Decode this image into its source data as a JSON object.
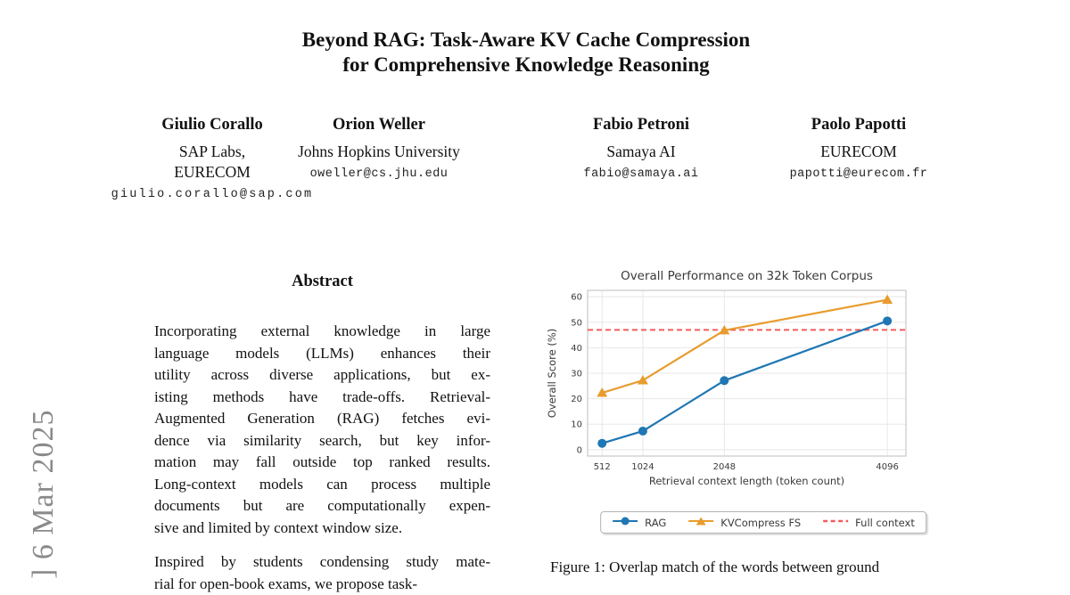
{
  "arxiv_stamp": {
    "text": "] 6 Mar 2025",
    "color": "#8a8a8a"
  },
  "title": {
    "line1": "Beyond RAG: Task-Aware KV Cache Compression",
    "line2": "for Comprehensive Knowledge Reasoning"
  },
  "authors": [
    {
      "name": "Giulio Corallo",
      "affil1": "SAP Labs,",
      "affil2": "EURECOM",
      "email": "giulio.corallo@sap.com"
    },
    {
      "name": "Orion Weller",
      "affil1": "Johns Hopkins University",
      "affil2": "",
      "email": "oweller@cs.jhu.edu"
    },
    {
      "name": "Fabio Petroni",
      "affil1": "Samaya AI",
      "affil2": "",
      "email": "fabio@samaya.ai"
    },
    {
      "name": "Paolo Papotti",
      "affil1": "EURECOM",
      "affil2": "",
      "email": "papotti@eurecom.fr"
    }
  ],
  "abstract": {
    "heading": "Abstract",
    "para1_lines": [
      "Incorporating external knowledge in large",
      "language models (LLMs) enhances their",
      "utility across diverse applications, but ex-",
      "isting methods have trade-offs.  Retrieval-",
      "Augmented Generation (RAG) fetches evi-",
      "dence via similarity search, but key infor-",
      "mation may fall outside top ranked results.",
      "Long-context models can process multiple",
      "documents but are computationally expen-",
      "sive and limited by context window size."
    ],
    "para2_lines": [
      "Inspired by students condensing study mate-",
      "rial for open-book exams, we propose task-"
    ]
  },
  "figure": {
    "caption": "Figure 1: Overlap match of the words between ground"
  },
  "chart_data": {
    "type": "line",
    "title": "Overall Performance on 32k Token Corpus",
    "xlabel": "Retrieval context length (token count)",
    "ylabel": "Overall Score (%)",
    "x": [
      512,
      1024,
      2048,
      4096
    ],
    "xticks": [
      512,
      1024,
      2048,
      4096
    ],
    "yticks": [
      0,
      10,
      20,
      30,
      40,
      50,
      60
    ],
    "xlim": [
      330,
      4330
    ],
    "ylim": [
      -2.5,
      62.5
    ],
    "grid": true,
    "legend_position": "below-chart",
    "series": [
      {
        "name": "RAG",
        "marker": "circle",
        "color": "#1f77b4",
        "values": [
          2.5,
          7.3,
          27.1,
          50.5
        ]
      },
      {
        "name": "KVCompress FS",
        "marker": "triangle",
        "color": "#e89c2e",
        "values": [
          22.3,
          27.2,
          46.8,
          58.8
        ]
      }
    ],
    "reference_line": {
      "name": "Full context",
      "style": "dashed",
      "color": "#f25c5c",
      "value": 47
    }
  }
}
